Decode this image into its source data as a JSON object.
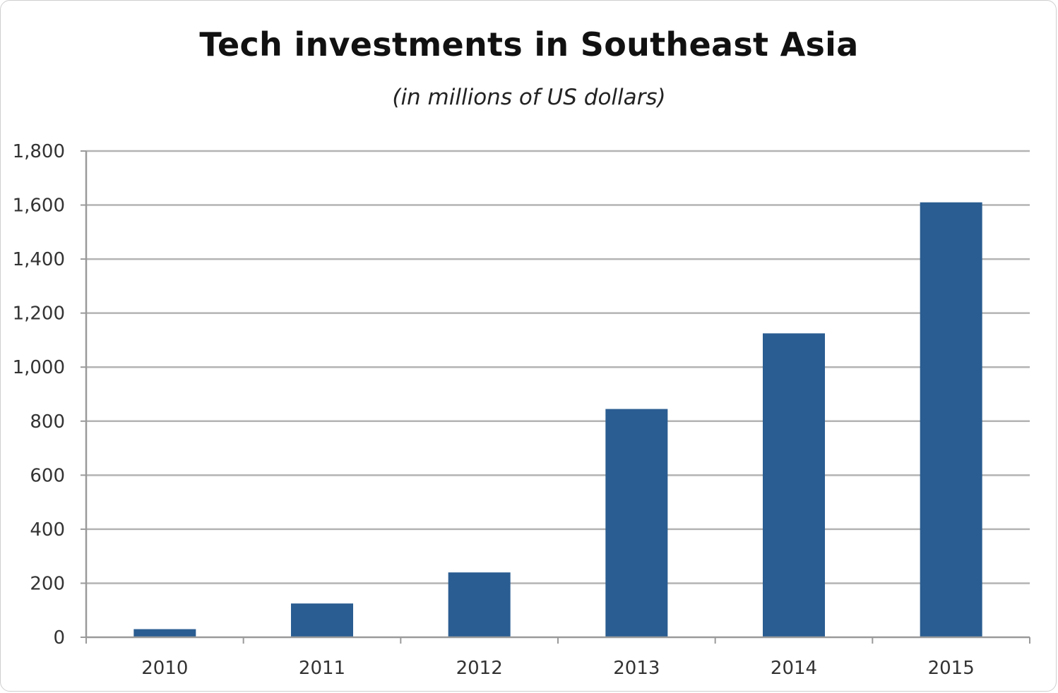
{
  "chart_data": {
    "type": "bar",
    "title": "Tech investments in Southeast Asia",
    "subtitle": "(in millions of US dollars)",
    "xlabel": "",
    "ylabel": "",
    "categories": [
      "2010",
      "2011",
      "2012",
      "2013",
      "2014",
      "2015"
    ],
    "values": [
      30,
      125,
      240,
      845,
      1125,
      1610
    ],
    "ylim": [
      0,
      1800
    ],
    "yticks": [
      0,
      200,
      400,
      600,
      800,
      1000,
      1200,
      1400,
      1600,
      1800
    ],
    "ytick_labels": [
      "0",
      "200",
      "400",
      "600",
      "800",
      "1,000",
      "1,200",
      "1,400",
      "1,600",
      "1,800"
    ],
    "grid": true,
    "bar_color": "#2a5d91"
  }
}
